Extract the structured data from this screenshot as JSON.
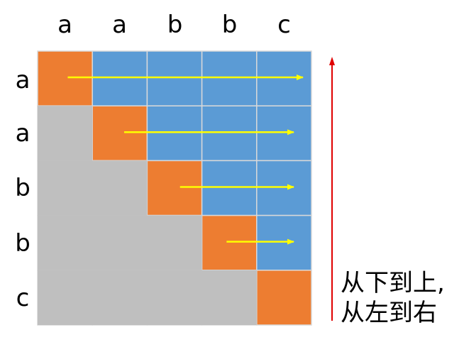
{
  "columns": [
    "a",
    "a",
    "b",
    "b",
    "c"
  ],
  "rows": [
    "a",
    "a",
    "b",
    "b",
    "c"
  ],
  "colors": {
    "diagonal": "#ED7D31",
    "upper": "#5B9BD5",
    "lower": "#BFBFBF",
    "grid_line": "#D9D9D9",
    "row_arrow": "#FFFF00",
    "vertical_arrow": "#E00000"
  },
  "caption": {
    "line1": "从下到上,",
    "line2": "从左到右"
  }
}
